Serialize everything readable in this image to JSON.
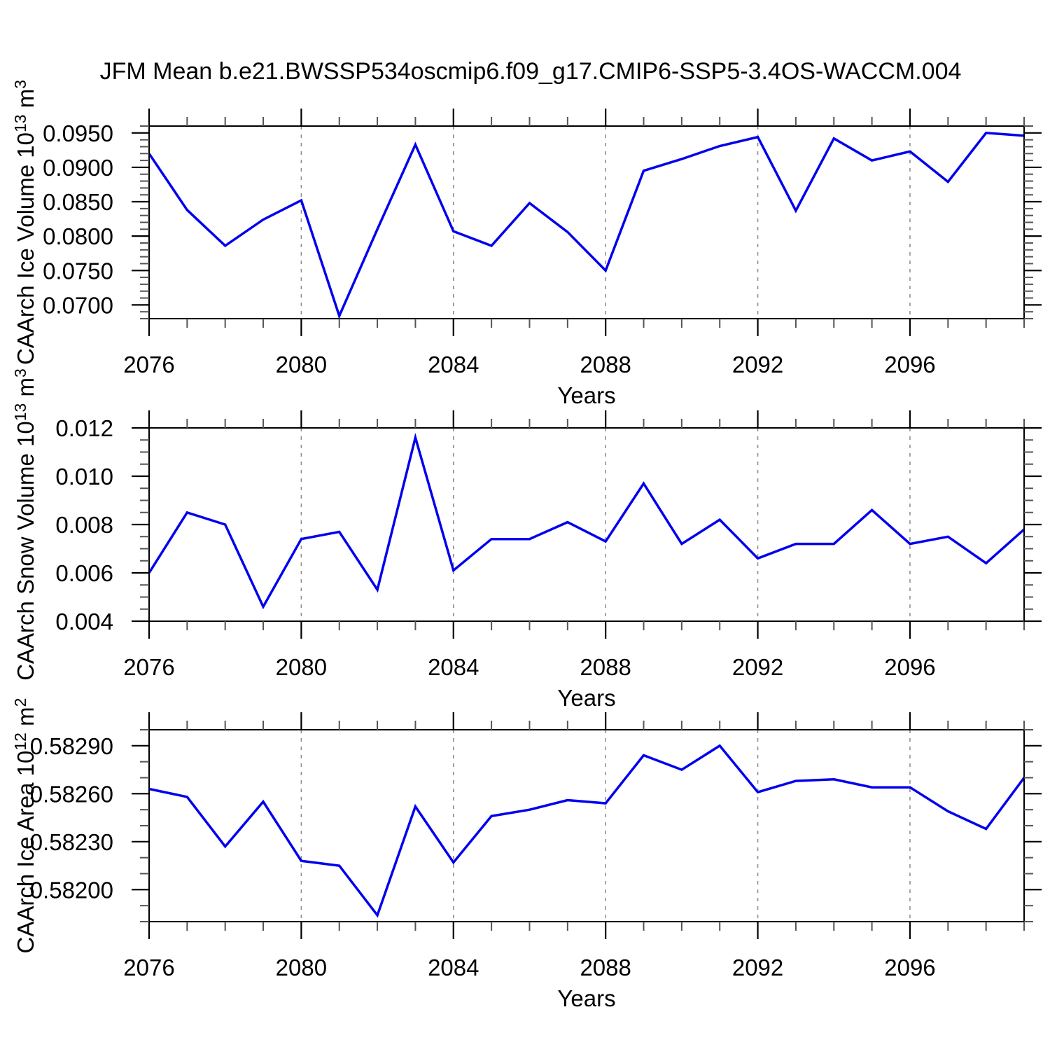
{
  "title": "JFM Mean b.e21.BWSSP534oscmip6.f09_g17.CMIP6-SSP5-3.4OS-WACCM.004",
  "xlabel": "Years",
  "colors": {
    "line": "#0000ee",
    "grid": "#8a8a8a",
    "axis": "#000000",
    "minor_tick": "#555555",
    "background": "#ffffff",
    "text": "#000000"
  },
  "x_axis": {
    "range": [
      2076,
      2099
    ],
    "major_ticks": [
      2076,
      2080,
      2084,
      2088,
      2092,
      2096
    ],
    "tick_labels": [
      "2076",
      "2080",
      "2084",
      "2088",
      "2092",
      "2096"
    ],
    "grid_years": [
      2080,
      2084,
      2088,
      2092,
      2096
    ],
    "minor_step_years": 1
  },
  "years": [
    2076,
    2077,
    2078,
    2079,
    2080,
    2081,
    2082,
    2083,
    2084,
    2085,
    2086,
    2087,
    2088,
    2089,
    2090,
    2091,
    2092,
    2093,
    2094,
    2095,
    2096,
    2097,
    2098,
    2099
  ],
  "chart_data": [
    {
      "type": "line",
      "name": "ice-volume",
      "ylabel": "CAArch Ice Volume 10^13 m^3",
      "ylabel_parts": [
        [
          "CAArch Ice Volume 10",
          false
        ],
        [
          "13",
          true
        ],
        [
          " m",
          false
        ],
        [
          "3",
          true
        ]
      ],
      "xlabel": "Years",
      "ylim": [
        0.068,
        0.096
      ],
      "y_major_ticks": [
        0.07,
        0.075,
        0.08,
        0.085,
        0.09,
        0.095
      ],
      "y_tick_labels": [
        "0.0700",
        "0.0750",
        "0.0800",
        "0.0850",
        "0.0900",
        "0.0950"
      ],
      "y_minor_step": 0.001,
      "x": "years",
      "values": [
        0.092,
        0.0838,
        0.0786,
        0.0824,
        0.0852,
        0.0684,
        0.081,
        0.0933,
        0.0807,
        0.0786,
        0.0848,
        0.0806,
        0.075,
        0.0895,
        0.0912,
        0.0931,
        0.0944,
        0.0837,
        0.0942,
        0.091,
        0.0923,
        0.0879,
        0.095,
        0.0946
      ],
      "grid": "vertical-dashed",
      "legend": "none"
    },
    {
      "type": "line",
      "name": "snow-volume",
      "ylabel": "CAArch Snow Volume 10^13 m^3",
      "ylabel_parts": [
        [
          "CAArch Snow Volume 10",
          false
        ],
        [
          "13",
          true
        ],
        [
          " m",
          false
        ],
        [
          "3",
          true
        ]
      ],
      "xlabel": "Years",
      "ylim": [
        0.004,
        0.012
      ],
      "y_major_ticks": [
        0.004,
        0.006,
        0.008,
        0.01,
        0.012
      ],
      "y_tick_labels": [
        "0.004",
        "0.006",
        "0.008",
        "0.010",
        "0.012"
      ],
      "y_minor_step": 0.0005,
      "x": "years",
      "values": [
        0.006,
        0.0085,
        0.008,
        0.0046,
        0.0074,
        0.0077,
        0.0053,
        0.0116,
        0.0061,
        0.0074,
        0.0074,
        0.0081,
        0.0073,
        0.0097,
        0.0072,
        0.0082,
        0.0066,
        0.0072,
        0.0072,
        0.0086,
        0.0072,
        0.0075,
        0.0064,
        0.0078
      ],
      "grid": "vertical-dashed",
      "legend": "none"
    },
    {
      "type": "line",
      "name": "ice-area",
      "ylabel": "CAArch Ice Area 10^12 m^2",
      "ylabel_parts": [
        [
          "CAArch Ice Area 10",
          false
        ],
        [
          "12",
          true
        ],
        [
          " m",
          false
        ],
        [
          "2",
          true
        ]
      ],
      "xlabel": "Years",
      "ylim": [
        0.5818,
        0.583
      ],
      "y_major_ticks": [
        0.582,
        0.5823,
        0.5826,
        0.5829
      ],
      "y_tick_labels": [
        "0.58200",
        "0.58230",
        "0.58260",
        "0.58290"
      ],
      "y_minor_step": 0.0001,
      "x": "years",
      "values": [
        0.58263,
        0.58258,
        0.58227,
        0.58255,
        0.58218,
        0.58215,
        0.58184,
        0.58252,
        0.58217,
        0.58246,
        0.5825,
        0.58256,
        0.58254,
        0.58284,
        0.58275,
        0.5829,
        0.58261,
        0.58268,
        0.58269,
        0.58264,
        0.58264,
        0.58249,
        0.58238,
        0.5827
      ],
      "grid": "vertical-dashed",
      "legend": "none"
    }
  ]
}
